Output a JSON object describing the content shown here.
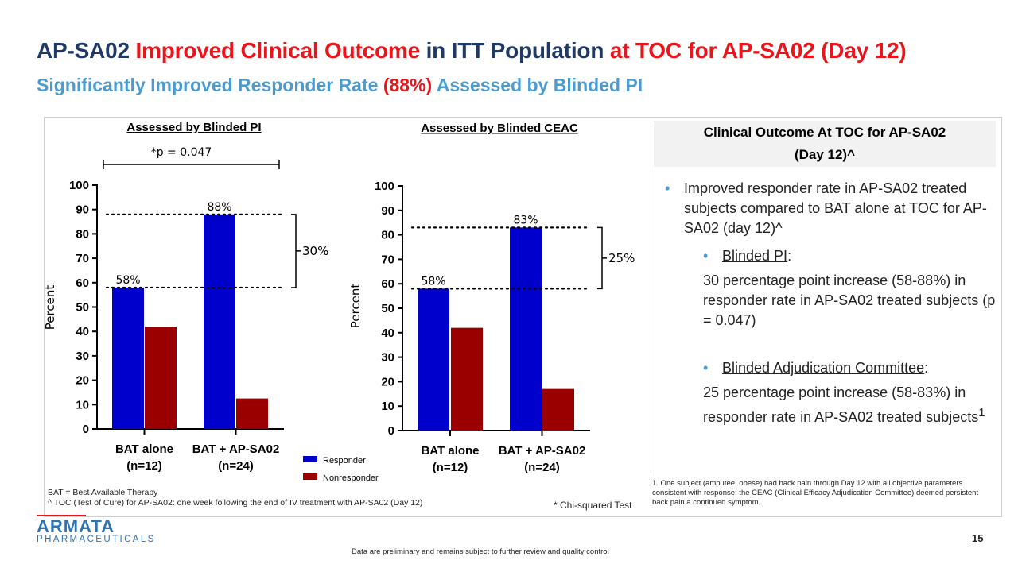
{
  "title": {
    "part1": "AP-SA02 ",
    "part2": "Improved Clinical Outcome",
    "part3": " in ITT Population ",
    "part4": "at TOC for AP-SA02 (Day 12)"
  },
  "subtitle": {
    "part1": "Significantly Improved Responder Rate ",
    "part2": "(88%)",
    "part3": " Assessed by Blinded PI"
  },
  "colors": {
    "responder": "#0000cc",
    "nonresponder": "#9b0000",
    "title_blue": "#1f3864",
    "accent_red": "#e8151b",
    "subtitle_blue": "#4a9bd2"
  },
  "chart_data": [
    {
      "type": "bar",
      "title": "Assessed by Blinded PI",
      "ylabel": "Percent",
      "ylim": [
        0,
        100
      ],
      "yticks": [
        "0",
        "10",
        "20",
        "30",
        "40",
        "50",
        "60",
        "70",
        "80",
        "90",
        "100"
      ],
      "categories": [
        {
          "line1": "BAT alone",
          "line2": "(n=12)"
        },
        {
          "line1": "BAT + AP-SA02",
          "line2": "(n=24)"
        }
      ],
      "series": [
        {
          "name": "Responder",
          "values": [
            58,
            88
          ],
          "labels": [
            "58%",
            "88%"
          ]
        },
        {
          "name": "Nonresponder",
          "values": [
            42,
            12.5
          ]
        }
      ],
      "bracket_label": "30%",
      "significance_label": "*p = 0.047"
    },
    {
      "type": "bar",
      "title": "Assessed by Blinded CEAC",
      "ylabel": "Percent",
      "ylim": [
        0,
        100
      ],
      "yticks": [
        "0",
        "10",
        "20",
        "30",
        "40",
        "50",
        "60",
        "70",
        "80",
        "90",
        "100"
      ],
      "categories": [
        {
          "line1": "BAT alone",
          "line2": "(n=12)"
        },
        {
          "line1": "BAT + AP-SA02",
          "line2": "(n=24)"
        }
      ],
      "series": [
        {
          "name": "Responder",
          "values": [
            58,
            83
          ],
          "labels": [
            "58%",
            "83%"
          ]
        },
        {
          "name": "Nonresponder",
          "values": [
            42,
            17
          ]
        }
      ],
      "bracket_label": "25%"
    }
  ],
  "legend": {
    "responder": "Responder",
    "nonresponder": "Nonresponder"
  },
  "panel": {
    "heading_line1": "Clinical Outcome At TOC for AP-SA02",
    "heading_line2": "(Day 12)^",
    "bullet1": "Improved responder rate in AP-SA02 treated subjects compared to BAT alone at TOC for AP-SA02 (day 12)^",
    "sub1_label": "Blinded PI",
    "sub1_text": "30 percentage point increase (58-88%) in responder rate in AP-SA02 treated subjects (p = 0.047)",
    "sub2_label": "Blinded Adjudication Committee",
    "sub2_text": "25 percentage point increase (58-83%) in responder rate in AP-SA02 treated subjects",
    "sub2_sup": "1",
    "colon": ":",
    "bullet_char": "•"
  },
  "footnotes": {
    "right": "1. One subject (amputee, obese) had back pain through Day 12 with all objective parameters consistent with response; the CEAC (Clinical Efficacy Adjudication Committee) deemed persistent back pain a continued symptom.",
    "left1": "BAT = Best Available Therapy",
    "left2": "^ TOC (Test of Cure) for AP-SA02: one week following the end of IV treatment with AP-SA02 (Day 12)",
    "chi": "* Chi-squared Test"
  },
  "logo": {
    "top": "ARMATA",
    "bottom": "PHARMACEUTICALS"
  },
  "page_number": "15",
  "disclaimer": "Data are preliminary and remains subject to further review and quality control"
}
